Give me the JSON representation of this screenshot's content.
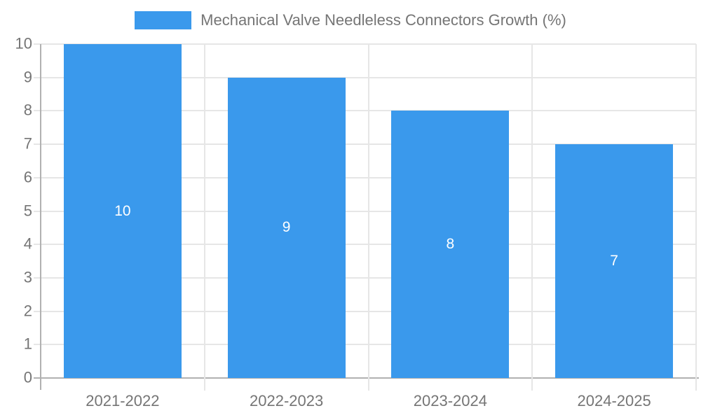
{
  "legend": {
    "label": "Mechanical Valve Needleless Connectors Growth (%)",
    "swatch_color": "#3A99EC"
  },
  "chart_data": {
    "type": "bar",
    "title": "Mechanical Valve Needleless Connectors Growth (%)",
    "categories": [
      "2021-2022",
      "2022-2023",
      "2023-2024",
      "2024-2025"
    ],
    "series": [
      {
        "name": "Mechanical Valve Needleless Connectors Growth (%)",
        "values": [
          10,
          9,
          8,
          7
        ]
      }
    ],
    "bar_value_labels": [
      "10",
      "9",
      "8",
      "7"
    ],
    "ylim": [
      0,
      10
    ],
    "ytick_interval": 1,
    "ytick_labels": [
      "0",
      "1",
      "2",
      "3",
      "4",
      "5",
      "6",
      "7",
      "8",
      "9",
      "10"
    ],
    "xlabel": "",
    "ylabel": "",
    "grid": true,
    "legend_position": "top",
    "colors": {
      "bar": "#3A99EC",
      "bar_label": "#FFFFFF",
      "axis_text": "#757575",
      "grid_line": "#E6E6E6",
      "axis_line": "#B1B1B1",
      "background": "#FFFFFF"
    }
  }
}
